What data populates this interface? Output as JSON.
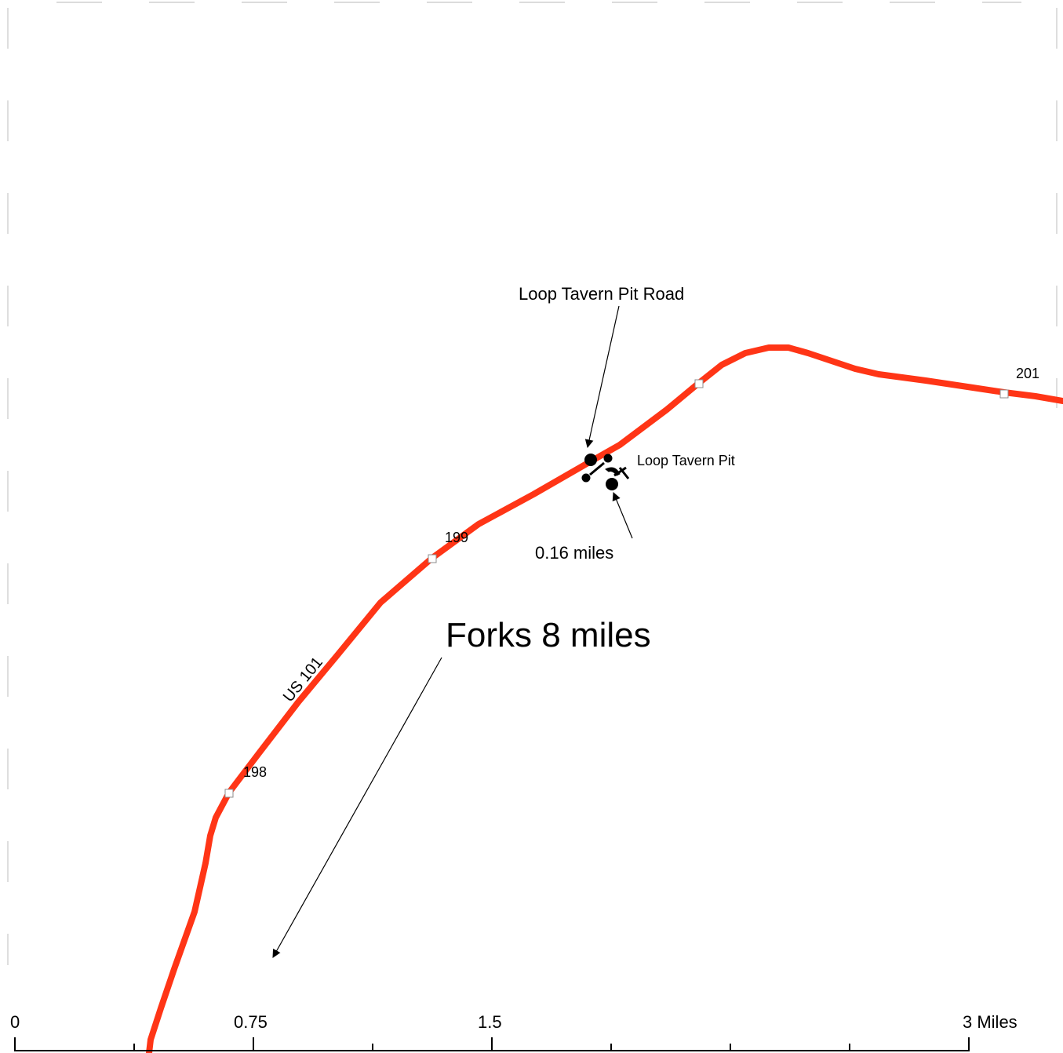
{
  "map": {
    "route": {
      "name": "US 101",
      "color": "#ff3516"
    },
    "mileposts": [
      "198",
      "199",
      "201"
    ],
    "features": {
      "site_name": "Loop Tavern Pit",
      "road_name": "Loop Tavern Pit Road",
      "distance_note": "0.16 miles",
      "direction_note": "Forks 8 miles"
    },
    "icons": [
      "quarry-pick-shovel-icon",
      "point-marker-icon"
    ],
    "scale_bar": {
      "labels": [
        "0",
        "0.75",
        "1.5",
        "3 Miles"
      ],
      "unit": "Miles"
    }
  }
}
